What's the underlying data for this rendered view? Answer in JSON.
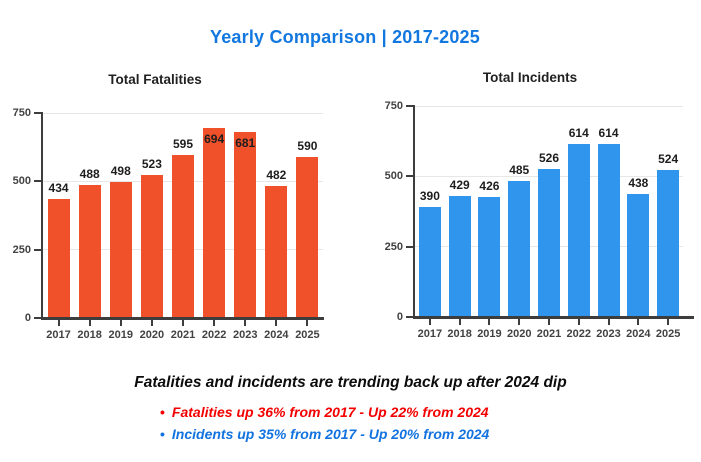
{
  "page_title": "Yearly Comparison | 2017-2025",
  "colors": {
    "title_blue": "#1278e0",
    "chart_title": "#212121",
    "ink": "#0c0c0c",
    "axis": "#3d3d3d",
    "axis_label": "#424242",
    "value_label": "#1d1d1d",
    "gridline": "#e7e7e7"
  },
  "chart_data": [
    {
      "type": "bar",
      "title": "Total Fatalities",
      "categories": [
        "2017",
        "2018",
        "2019",
        "2020",
        "2021",
        "2022",
        "2023",
        "2024",
        "2025"
      ],
      "values": [
        434,
        488,
        498,
        523,
        595,
        694,
        681,
        482,
        590
      ],
      "bar_color": "#f0512b",
      "xlabel": "",
      "ylabel": "",
      "ylim": [
        0,
        750
      ],
      "yticks": [
        0,
        250,
        500,
        750
      ],
      "grid": true,
      "legend": "none",
      "data_labels": true
    },
    {
      "type": "bar",
      "title": "Total Incidents",
      "categories": [
        "2017",
        "2018",
        "2019",
        "2020",
        "2021",
        "2022",
        "2023",
        "2024",
        "2025"
      ],
      "values": [
        390,
        429,
        426,
        485,
        526,
        614,
        614,
        438,
        524
      ],
      "bar_color": "#3095ec",
      "xlabel": "",
      "ylabel": "",
      "ylim": [
        0,
        750
      ],
      "yticks": [
        0,
        250,
        500,
        750
      ],
      "grid": true,
      "legend": "none",
      "data_labels": true
    }
  ],
  "annotations": {
    "headline": "Fatalities and incidents are trending back up after 2024 dip",
    "bullets": [
      {
        "text": "Fatalities up 36% from 2017 - Up 22% from 2024",
        "color": "#f40000"
      },
      {
        "text": "Incidents up 35% from 2017 - Up 20% from 2024",
        "color": "#1273e0"
      }
    ]
  }
}
